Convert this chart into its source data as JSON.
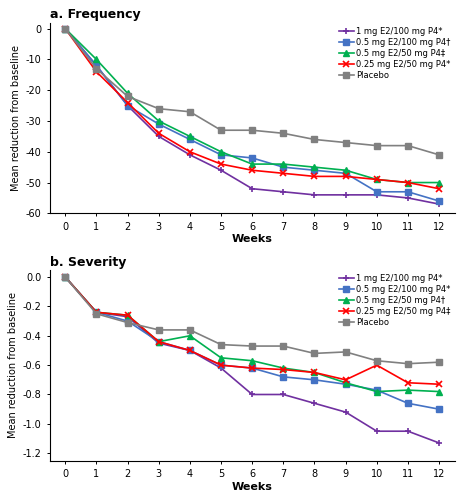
{
  "weeks": [
    0,
    1,
    2,
    3,
    4,
    5,
    6,
    7,
    8,
    9,
    10,
    11,
    12
  ],
  "freq": {
    "purple": [
      0,
      -12,
      -25,
      -35,
      -41,
      -46,
      -52,
      -53,
      -54,
      -54,
      -54,
      -55,
      -57
    ],
    "blue": [
      0,
      -12,
      -25,
      -31,
      -36,
      -41,
      -42,
      -45,
      -46,
      -47,
      -53,
      -53,
      -56
    ],
    "green": [
      0,
      -10,
      -21,
      -30,
      -35,
      -40,
      -44,
      -44,
      -45,
      -46,
      -49,
      -50,
      -50
    ],
    "red": [
      0,
      -14,
      -24,
      -34,
      -40,
      -44,
      -46,
      -47,
      -48,
      -48,
      -49,
      -50,
      -52
    ],
    "gray": [
      0,
      -13,
      -22,
      -26,
      -27,
      -33,
      -33,
      -34,
      -36,
      -37,
      -38,
      -38,
      -41
    ]
  },
  "sev": {
    "purple": [
      0,
      -0.24,
      -0.27,
      -0.45,
      -0.5,
      -0.62,
      -0.8,
      -0.8,
      -0.86,
      -0.92,
      -1.05,
      -1.05,
      -1.13
    ],
    "blue": [
      0,
      -0.24,
      -0.3,
      -0.44,
      -0.5,
      -0.6,
      -0.62,
      -0.68,
      -0.7,
      -0.73,
      -0.77,
      -0.86,
      -0.9
    ],
    "green": [
      0,
      -0.24,
      -0.26,
      -0.44,
      -0.4,
      -0.55,
      -0.57,
      -0.62,
      -0.65,
      -0.72,
      -0.78,
      -0.77,
      -0.78
    ],
    "red": [
      0,
      -0.24,
      -0.26,
      -0.44,
      -0.5,
      -0.6,
      -0.62,
      -0.63,
      -0.65,
      -0.7,
      -0.6,
      -0.72,
      -0.73
    ],
    "gray": [
      0,
      -0.25,
      -0.31,
      -0.36,
      -0.36,
      -0.46,
      -0.47,
      -0.47,
      -0.52,
      -0.51,
      -0.57,
      -0.59,
      -0.58
    ]
  },
  "colors": {
    "purple": "#7030A0",
    "blue": "#4472C4",
    "green": "#00B050",
    "red": "#FF0000",
    "gray": "#808080"
  },
  "legend_freq": [
    "1 mg E2/100 mg P4*",
    "0.5 mg E2/100 mg P4†",
    "0.5 mg E2/50 mg P4‡",
    "0.25 mg E2/50 mg P4*",
    "Placebo"
  ],
  "legend_sev": [
    "1 mg E2/100 mg P4*",
    "0.5 mg E2/100 mg P4*",
    "0.5 mg E2/50 mg P4†",
    "0.25 mg E2/50 mg P4‡",
    "Placebo"
  ],
  "title_a": "a. Frequency",
  "title_b": "b. Severity",
  "ylabel": "Mean reduction from baseline",
  "xlabel": "Weeks",
  "ylim_freq": [
    -60,
    2
  ],
  "ylim_sev": [
    -1.25,
    0.05
  ],
  "yticks_freq": [
    0,
    -10,
    -20,
    -30,
    -40,
    -50,
    -60
  ],
  "yticks_sev": [
    0.0,
    -0.2,
    -0.4,
    -0.6,
    -0.8,
    -1.0,
    -1.2
  ]
}
